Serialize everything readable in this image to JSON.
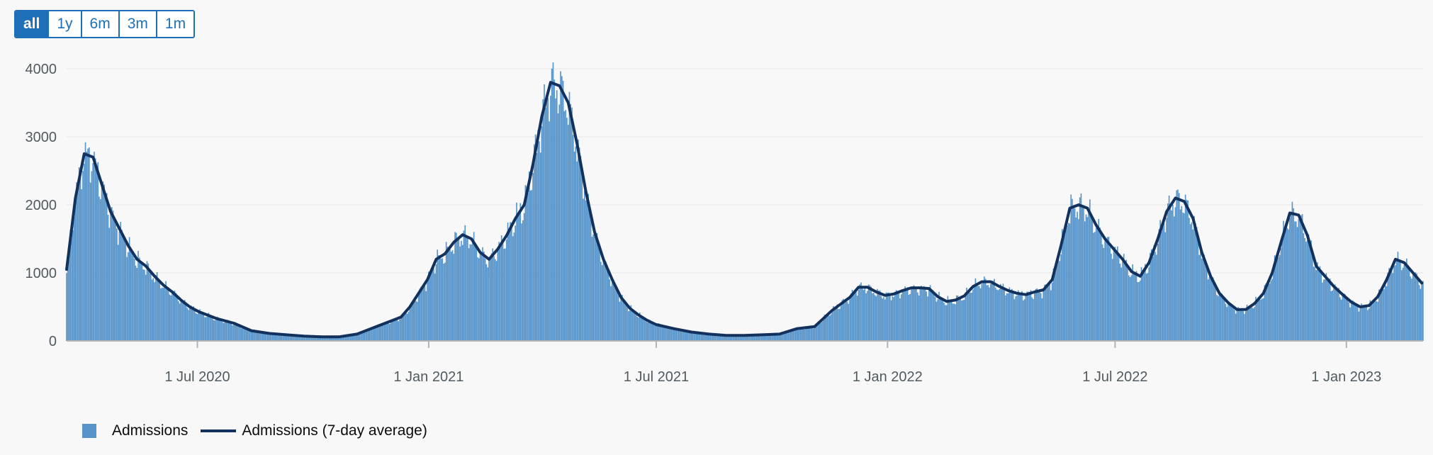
{
  "range_buttons": [
    "all",
    "1y",
    "6m",
    "3m",
    "1m"
  ],
  "active_range": "all",
  "colors": {
    "bars": "#5694ca",
    "average_line": "#12315c",
    "grid": "#e6e6e6",
    "accent": "#1d70b8"
  },
  "chart_data": {
    "type": "bar",
    "title": "",
    "xlabel": "",
    "ylabel": "",
    "ylim": [
      0,
      4000
    ],
    "yticks": [
      0,
      1000,
      2000,
      3000,
      4000
    ],
    "x_range": [
      "2020-03-19",
      "2023-03-03"
    ],
    "x_ticks": [
      {
        "date": "2020-07-01",
        "label": "1 Jul 2020"
      },
      {
        "date": "2021-01-01",
        "label": "1 Jan 2021"
      },
      {
        "date": "2021-07-01",
        "label": "1 Jul 2021"
      },
      {
        "date": "2022-01-01",
        "label": "1 Jan 2022"
      },
      {
        "date": "2022-07-01",
        "label": "1 Jul 2022"
      },
      {
        "date": "2023-01-01",
        "label": "1 Jan 2023"
      }
    ],
    "grid": true,
    "legend_position": "bottom-left",
    "series": [
      {
        "name": "Admissions",
        "type": "bar",
        "color": "#5694ca"
      },
      {
        "name": "Admissions (7-day average)",
        "type": "line",
        "color": "#12315c"
      }
    ],
    "seven_day_average": [
      [
        "2020-03-19",
        1050
      ],
      [
        "2020-03-26",
        2100
      ],
      [
        "2020-04-02",
        2750
      ],
      [
        "2020-04-09",
        2700
      ],
      [
        "2020-04-16",
        2300
      ],
      [
        "2020-04-23",
        1900
      ],
      [
        "2020-04-30",
        1650
      ],
      [
        "2020-05-07",
        1400
      ],
      [
        "2020-05-14",
        1200
      ],
      [
        "2020-05-21",
        1100
      ],
      [
        "2020-05-28",
        950
      ],
      [
        "2020-06-04",
        820
      ],
      [
        "2020-06-11",
        720
      ],
      [
        "2020-06-18",
        600
      ],
      [
        "2020-06-25",
        500
      ],
      [
        "2020-07-02",
        430
      ],
      [
        "2020-07-16",
        330
      ],
      [
        "2020-07-30",
        260
      ],
      [
        "2020-08-13",
        150
      ],
      [
        "2020-08-27",
        110
      ],
      [
        "2020-09-10",
        90
      ],
      [
        "2020-09-24",
        70
      ],
      [
        "2020-10-08",
        60
      ],
      [
        "2020-10-22",
        60
      ],
      [
        "2020-11-05",
        100
      ],
      [
        "2020-11-19",
        200
      ],
      [
        "2020-12-03",
        300
      ],
      [
        "2020-12-10",
        350
      ],
      [
        "2020-12-17",
        500
      ],
      [
        "2020-12-24",
        700
      ],
      [
        "2020-12-31",
        900
      ],
      [
        "2021-01-07",
        1200
      ],
      [
        "2021-01-14",
        1280
      ],
      [
        "2021-01-21",
        1450
      ],
      [
        "2021-01-28",
        1560
      ],
      [
        "2021-02-04",
        1500
      ],
      [
        "2021-02-11",
        1300
      ],
      [
        "2021-02-18",
        1200
      ],
      [
        "2021-02-25",
        1350
      ],
      [
        "2021-03-04",
        1550
      ],
      [
        "2021-03-11",
        1800
      ],
      [
        "2021-03-18",
        2000
      ],
      [
        "2021-03-25",
        2600
      ],
      [
        "2021-04-01",
        3300
      ],
      [
        "2021-04-08",
        3800
      ],
      [
        "2021-04-15",
        3750
      ],
      [
        "2021-04-22",
        3500
      ],
      [
        "2021-04-29",
        2900
      ],
      [
        "2021-05-06",
        2200
      ],
      [
        "2021-05-13",
        1600
      ],
      [
        "2021-05-20",
        1200
      ],
      [
        "2021-05-27",
        900
      ],
      [
        "2021-06-03",
        640
      ],
      [
        "2021-06-10",
        480
      ],
      [
        "2021-06-17",
        380
      ],
      [
        "2021-06-24",
        300
      ],
      [
        "2021-07-01",
        240
      ],
      [
        "2021-07-15",
        180
      ],
      [
        "2021-07-29",
        130
      ],
      [
        "2021-08-12",
        100
      ],
      [
        "2021-08-26",
        80
      ],
      [
        "2021-09-09",
        80
      ],
      [
        "2021-09-23",
        90
      ],
      [
        "2021-10-07",
        100
      ],
      [
        "2021-10-21",
        180
      ],
      [
        "2021-11-04",
        210
      ],
      [
        "2021-11-18",
        450
      ],
      [
        "2021-12-02",
        640
      ],
      [
        "2021-12-09",
        790
      ],
      [
        "2021-12-16",
        790
      ],
      [
        "2021-12-23",
        720
      ],
      [
        "2021-12-30",
        670
      ],
      [
        "2022-01-06",
        690
      ],
      [
        "2022-01-13",
        740
      ],
      [
        "2022-01-20",
        780
      ],
      [
        "2022-01-27",
        780
      ],
      [
        "2022-02-03",
        770
      ],
      [
        "2022-02-10",
        650
      ],
      [
        "2022-02-17",
        580
      ],
      [
        "2022-02-24",
        600
      ],
      [
        "2022-03-03",
        660
      ],
      [
        "2022-03-10",
        800
      ],
      [
        "2022-03-17",
        870
      ],
      [
        "2022-03-24",
        870
      ],
      [
        "2022-03-31",
        800
      ],
      [
        "2022-04-07",
        740
      ],
      [
        "2022-04-14",
        700
      ],
      [
        "2022-04-21",
        680
      ],
      [
        "2022-04-28",
        720
      ],
      [
        "2022-05-05",
        750
      ],
      [
        "2022-05-12",
        900
      ],
      [
        "2022-05-19",
        1400
      ],
      [
        "2022-05-26",
        1950
      ],
      [
        "2022-06-02",
        2000
      ],
      [
        "2022-06-09",
        1950
      ],
      [
        "2022-06-16",
        1700
      ],
      [
        "2022-06-23",
        1500
      ],
      [
        "2022-06-30",
        1350
      ],
      [
        "2022-07-07",
        1200
      ],
      [
        "2022-07-14",
        1020
      ],
      [
        "2022-07-21",
        950
      ],
      [
        "2022-07-28",
        1150
      ],
      [
        "2022-08-04",
        1500
      ],
      [
        "2022-08-11",
        1900
      ],
      [
        "2022-08-18",
        2100
      ],
      [
        "2022-08-25",
        2050
      ],
      [
        "2022-09-01",
        1800
      ],
      [
        "2022-09-08",
        1300
      ],
      [
        "2022-09-15",
        950
      ],
      [
        "2022-09-22",
        700
      ],
      [
        "2022-09-29",
        560
      ],
      [
        "2022-10-06",
        460
      ],
      [
        "2022-10-13",
        460
      ],
      [
        "2022-10-20",
        550
      ],
      [
        "2022-10-27",
        700
      ],
      [
        "2022-11-03",
        1000
      ],
      [
        "2022-11-10",
        1450
      ],
      [
        "2022-11-17",
        1880
      ],
      [
        "2022-11-24",
        1850
      ],
      [
        "2022-12-01",
        1550
      ],
      [
        "2022-12-08",
        1100
      ],
      [
        "2022-12-15",
        950
      ],
      [
        "2022-12-22",
        800
      ],
      [
        "2022-12-29",
        680
      ],
      [
        "2023-01-05",
        570
      ],
      [
        "2023-01-12",
        500
      ],
      [
        "2023-01-19",
        520
      ],
      [
        "2023-01-26",
        650
      ],
      [
        "2023-02-02",
        900
      ],
      [
        "2023-02-09",
        1200
      ],
      [
        "2023-02-16",
        1150
      ],
      [
        "2023-02-23",
        1000
      ],
      [
        "2023-03-02",
        850
      ]
    ]
  }
}
